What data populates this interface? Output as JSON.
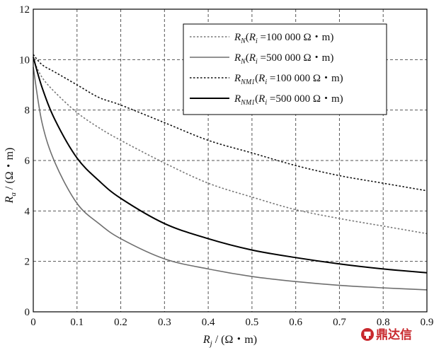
{
  "chart_data": {
    "type": "line",
    "title": "",
    "xlabel": {
      "main": "R",
      "sub": "j",
      "unit": " / (Ω・m)"
    },
    "ylabel": {
      "main": "R",
      "sub": "a",
      "unit": " / (Ω・m)"
    },
    "xlim": [
      0,
      0.9
    ],
    "ylim": [
      0,
      12
    ],
    "x_ticks": [
      "0",
      "0.1",
      "0.2",
      "0.3",
      "0.4",
      "0.5",
      "0.6",
      "0.7",
      "0.8",
      "0.9"
    ],
    "y_ticks": [
      "0",
      "2",
      "4",
      "6",
      "8",
      "10",
      "12"
    ],
    "grid": true,
    "legend_position": "top-right",
    "series": [
      {
        "name": {
          "main": "R",
          "sub": "N",
          "rest": "(",
          "ri": "R",
          "ri_sub": "i",
          "value": " =100 000 Ω・m)"
        },
        "style": "dotted",
        "color": "#777777",
        "x": [
          0,
          0.02,
          0.05,
          0.1,
          0.15,
          0.2,
          0.3,
          0.4,
          0.5,
          0.6,
          0.7,
          0.8,
          0.9
        ],
        "y": [
          10.0,
          9.3,
          8.7,
          7.9,
          7.3,
          6.8,
          5.9,
          5.1,
          4.55,
          4.05,
          3.7,
          3.4,
          3.1
        ]
      },
      {
        "name": {
          "main": "R",
          "sub": "N",
          "rest": "(",
          "ri": "R",
          "ri_sub": "i",
          "value": " =500 000 Ω・m)"
        },
        "style": "solid",
        "color": "#6e6e6e",
        "x": [
          0,
          0.02,
          0.05,
          0.1,
          0.15,
          0.2,
          0.3,
          0.4,
          0.5,
          0.6,
          0.7,
          0.8,
          0.9
        ],
        "y": [
          9.7,
          7.5,
          5.9,
          4.3,
          3.5,
          2.9,
          2.1,
          1.7,
          1.4,
          1.2,
          1.05,
          0.95,
          0.87
        ]
      },
      {
        "name": {
          "main": "R",
          "sub": "NM1",
          "rest": "(",
          "ri": "R",
          "ri_sub": "i",
          "value": " =100 000 Ω・m)"
        },
        "style": "dotted",
        "color": "#111111",
        "x": [
          0,
          0.02,
          0.05,
          0.1,
          0.15,
          0.2,
          0.3,
          0.4,
          0.5,
          0.6,
          0.7,
          0.8,
          0.9
        ],
        "y": [
          10.2,
          9.8,
          9.5,
          9.0,
          8.5,
          8.2,
          7.5,
          6.8,
          6.3,
          5.8,
          5.4,
          5.1,
          4.8
        ]
      },
      {
        "name": {
          "main": "R",
          "sub": "NM1",
          "rest": "(",
          "ri": "R",
          "ri_sub": "i",
          "value": " =500 000 Ω・m)"
        },
        "style": "solid",
        "color": "#000000",
        "x": [
          0,
          0.02,
          0.05,
          0.1,
          0.15,
          0.2,
          0.3,
          0.4,
          0.5,
          0.6,
          0.7,
          0.8,
          0.9
        ],
        "y": [
          10.1,
          8.9,
          7.6,
          6.1,
          5.2,
          4.5,
          3.5,
          2.9,
          2.45,
          2.15,
          1.9,
          1.7,
          1.55
        ]
      }
    ]
  },
  "watermark": {
    "text": "鼎达信",
    "icon": "dingdaxin-logo-icon",
    "color": "#c8282d"
  }
}
